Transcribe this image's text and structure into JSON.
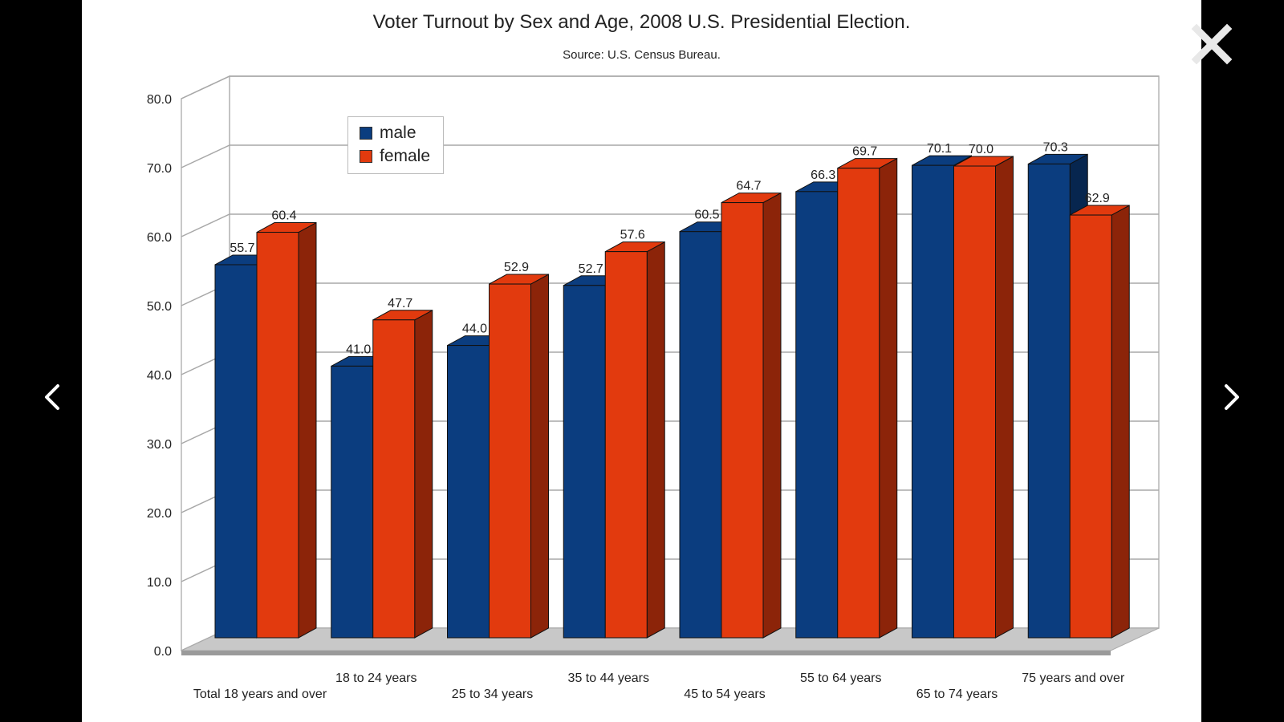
{
  "viewer": {
    "close_icon": "close-icon",
    "prev_icon": "chevron-left-icon",
    "next_icon": "chevron-right-icon",
    "background": "#000000"
  },
  "chart_data": {
    "type": "bar",
    "title": "Voter Turnout by Sex and Age, 2008 U.S. Presidential Election.",
    "subtitle": "Source: U.S. Census Bureau.",
    "categories": [
      "Total 18 years and over",
      "18 to 24 years",
      "25 to 34 years",
      "35 to 44 years",
      "45 to 54 years",
      "55 to 64 years",
      "65 to 74 years",
      "75 years and over"
    ],
    "series": [
      {
        "name": "male",
        "color": "#0B3D7F",
        "values": [
          55.7,
          41.0,
          44.0,
          52.7,
          60.5,
          66.3,
          70.1,
          70.3
        ],
        "labels": [
          "55.7",
          "41.0",
          "44.0",
          "52.7",
          "60.5",
          "66.3",
          "70.1",
          "70.3"
        ]
      },
      {
        "name": "female",
        "color": "#E23A0E",
        "values": [
          60.4,
          47.7,
          52.9,
          57.6,
          64.7,
          69.7,
          70.0,
          62.9
        ],
        "labels": [
          "60.4",
          "47.7",
          "52.9",
          "57.6",
          "64.7",
          "69.7",
          "70.0",
          "62.9"
        ]
      }
    ],
    "ylim": [
      0,
      80
    ],
    "yticks": [
      "0.0",
      "10.0",
      "20.0",
      "30.0",
      "40.0",
      "50.0",
      "60.0",
      "70.0",
      "80.0"
    ],
    "grid": true,
    "legend_position": "top-left",
    "xlabel": "",
    "ylabel": ""
  }
}
